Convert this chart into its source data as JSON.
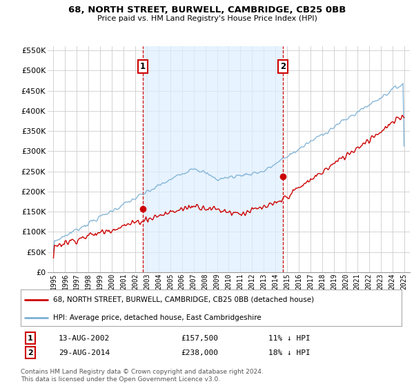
{
  "title": "68, NORTH STREET, BURWELL, CAMBRIDGE, CB25 0BB",
  "subtitle": "Price paid vs. HM Land Registry's House Price Index (HPI)",
  "ylim": [
    0,
    560000
  ],
  "ytick_vals": [
    0,
    50000,
    100000,
    150000,
    200000,
    250000,
    300000,
    350000,
    400000,
    450000,
    500000,
    550000
  ],
  "sale1_year": 2002.62,
  "sale1_price": 157500,
  "sale1_label": "1",
  "sale2_year": 2014.66,
  "sale2_price": 238000,
  "sale2_label": "2",
  "vline_color": "#cc0000",
  "hpi_color": "#7bafd4",
  "hpi_fill_color": "#ddeeff",
  "price_color": "#cc0000",
  "marker_color": "#cc0000",
  "background_color": "#ffffff",
  "grid_color": "#cccccc",
  "legend_entry1": "68, NORTH STREET, BURWELL, CAMBRIDGE, CB25 0BB (detached house)",
  "legend_entry2": "HPI: Average price, detached house, East Cambridgeshire",
  "table_row1": [
    "1",
    "13-AUG-2002",
    "£157,500",
    "11% ↓ HPI"
  ],
  "table_row2": [
    "2",
    "29-AUG-2014",
    "£238,000",
    "18% ↓ HPI"
  ],
  "footnote": "Contains HM Land Registry data © Crown copyright and database right 2024.\nThis data is licensed under the Open Government Licence v3.0.",
  "xlim_start": 1994.5,
  "xlim_end": 2025.5
}
